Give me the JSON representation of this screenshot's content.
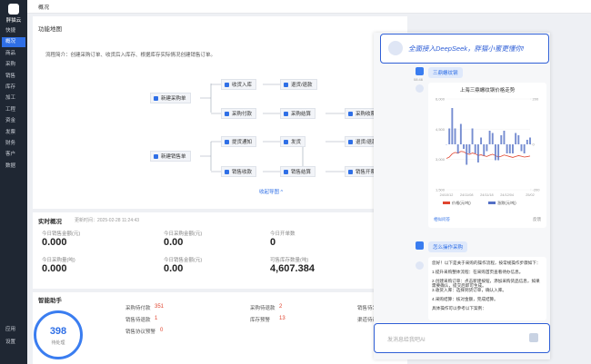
{
  "sidebar": {
    "brand": "胖猫云",
    "items": [
      "快捷",
      "概况",
      "商品",
      "采购",
      "销售",
      "库存",
      "加工",
      "工程",
      "资金",
      "发票",
      "财务",
      "客户",
      "数据"
    ],
    "active": 1,
    "bottom": [
      "应用",
      "设置"
    ]
  },
  "tab": "概况",
  "map": {
    "title": "功能地图",
    "intro": "流程简介：创建采购订单、收货后入库存、根据库存实际情况创建销售订单。",
    "nodes": [
      "新建采购单",
      "收货入库",
      "退货/退款",
      "采购付款",
      "采购结算",
      "采购收票",
      "新建销售单",
      "提货通知",
      "发货",
      "退货/退款",
      "销售收款",
      "销售结算",
      "销售开票"
    ],
    "collapse": "收起导图 ^"
  },
  "overview": {
    "title": "实时概况",
    "updated": "更新时间：2025-02-28 11:24:43",
    "stats": [
      {
        "label": "今日销售金额(元)",
        "value": "0.000"
      },
      {
        "label": "今日采购金额(元)",
        "value": "0.00"
      },
      {
        "label": "今日开单数",
        "value": "0"
      },
      {
        "label": "今日采购量(吨)",
        "value": "0.000"
      },
      {
        "label": "今日销售金额(元)",
        "value": "0.00"
      },
      {
        "label": "可售库存数量(吨)",
        "value": "4,607.384"
      }
    ]
  },
  "assistant": {
    "title": "智能助手",
    "total": "398",
    "total_label": "待处理",
    "items": [
      {
        "label": "采购待付款",
        "value": "351"
      },
      {
        "label": "采购待退款",
        "value": "2"
      },
      {
        "label": "销售待发货",
        "value": "11"
      },
      {
        "label": "销售待退款",
        "value": "1"
      },
      {
        "label": "库存预警",
        "value": "13"
      },
      {
        "label": "渠道待退款",
        "value": "0"
      },
      {
        "label": "销售协议预警",
        "value": "0"
      }
    ]
  },
  "chat": {
    "banner": "全面接入DeepSeek，胖猫小蜜更懂你!",
    "time": "08:46",
    "question1": "三鼎螺纹钢",
    "chart": {
      "type": "line",
      "title": "上海三鼎螺纹钢价格走势",
      "categories": [
        "24/10/12",
        null,
        null,
        null,
        null,
        null,
        null,
        "24/11/08",
        null,
        null,
        null,
        null,
        null,
        null,
        "24/11/18",
        null,
        null,
        null,
        null,
        null,
        null,
        "24/12/04",
        null,
        null,
        null,
        null,
        null,
        null,
        null,
        "25/02"
      ],
      "series": [
        {
          "name": "价格(元/吨)",
          "color": "#e0452f",
          "values": [
            3050,
            3120,
            3280,
            3350,
            3310,
            3400,
            3380,
            3290,
            3250,
            3320,
            3280,
            3200,
            3230,
            3180,
            3150,
            3210,
            3260,
            3190,
            3120,
            3160,
            3220,
            3180,
            3140,
            3100,
            3150,
            3190,
            3160,
            3120,
            3140,
            3170
          ]
        },
        {
          "name": "涨跌(元/吨)",
          "color": "#5470c6",
          "axis": "y2",
          "values": [
            0,
            70,
            160,
            70,
            -40,
            90,
            -20,
            -90,
            -40,
            70,
            -40,
            -80,
            30,
            -50,
            -30,
            60,
            50,
            -70,
            -70,
            40,
            60,
            -40,
            -40,
            -40,
            50,
            40,
            -30,
            -40,
            20,
            30
          ]
        }
      ],
      "ylim": [
        1500,
        6000
      ],
      "yticks": [
        {
          "value": 1500,
          "label": "1,500"
        },
        {
          "value": 3000,
          "label": "3,000"
        },
        {
          "value": 4500,
          "label": "4,500"
        },
        {
          "value": 6000,
          "label": "6,000"
        }
      ],
      "y2lim": [
        -200,
        200
      ],
      "y2ticks": [
        -200,
        0,
        200
      ],
      "grid": true
    },
    "chart_footer": [
      "相似问答",
      "反馈"
    ],
    "question2": "怎么操作采购",
    "answer": [
      "您好！以下是关于采购的操作流程，按常规操作步骤如下：",
      "1.提升采购整体流程：在采购首页查看待办信息。",
      "2.创建采购订单：点击新建按钮，添加采购货品信息，如果需要确认，提交后即可生成。",
      "3.收货入库：选择到货订单，确认入库。",
      "4.采购结算：核对金额，完成结算。",
      "具体操作可以参考以下案例："
    ],
    "input_placeholder": "发消息给我吧AI"
  }
}
